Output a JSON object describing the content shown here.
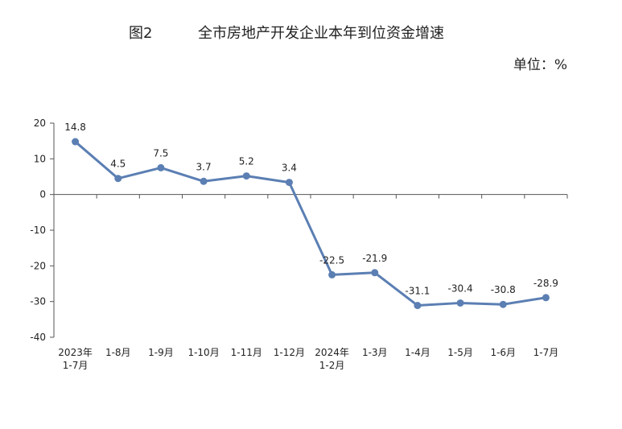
{
  "figure_label": "图2",
  "title": "全市房地产开发企业本年到位资金增速",
  "unit_label": "单位：%",
  "colors": {
    "line": "#5b7fb3",
    "axis": "#555555"
  },
  "chart_data": {
    "type": "line",
    "title": "全市房地产开发企业本年到位资金增速",
    "ylim": [
      -40,
      20
    ],
    "yticks": [
      20,
      10,
      0,
      -10,
      -20,
      -30,
      -40
    ],
    "grid": false,
    "legend": "none",
    "categories": [
      [
        "2023年",
        "1-7月"
      ],
      [
        "1-8月"
      ],
      [
        "1-9月"
      ],
      [
        "1-10月"
      ],
      [
        "1-11月"
      ],
      [
        "1-12月"
      ],
      [
        "2024年",
        "1-2月"
      ],
      [
        "1-3月"
      ],
      [
        "1-4月"
      ],
      [
        "1-5月"
      ],
      [
        "1-6月"
      ],
      [
        "1-7月"
      ]
    ],
    "values": [
      14.8,
      4.5,
      7.5,
      3.7,
      5.2,
      3.4,
      -22.5,
      -21.9,
      -31.1,
      -30.4,
      -30.8,
      -28.9
    ]
  }
}
